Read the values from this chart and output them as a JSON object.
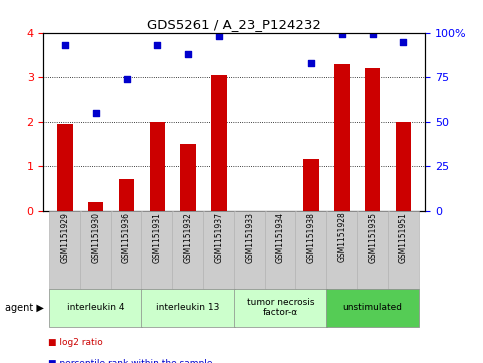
{
  "title": "GDS5261 / A_23_P124232",
  "samples": [
    "GSM1151929",
    "GSM1151930",
    "GSM1151936",
    "GSM1151931",
    "GSM1151932",
    "GSM1151937",
    "GSM1151933",
    "GSM1151934",
    "GSM1151938",
    "GSM1151928",
    "GSM1151935",
    "GSM1151951"
  ],
  "log2_ratio": [
    1.95,
    0.2,
    0.7,
    2.0,
    1.5,
    3.05,
    0.0,
    0.0,
    1.15,
    3.3,
    3.2,
    2.0
  ],
  "percentile": [
    93,
    55,
    74,
    93,
    88,
    98,
    0,
    0,
    83,
    99,
    99,
    95
  ],
  "groups": [
    {
      "label": "interleukin 4",
      "indices": [
        0,
        1,
        2
      ],
      "color": "#ccffcc",
      "text_lines": 1
    },
    {
      "label": "interleukin 13",
      "indices": [
        3,
        4,
        5
      ],
      "color": "#ccffcc",
      "text_lines": 1
    },
    {
      "label": "tumor necrosis\nfactor-α",
      "indices": [
        6,
        7,
        8
      ],
      "color": "#ccffcc",
      "text_lines": 2
    },
    {
      "label": "unstimulated",
      "indices": [
        9,
        10,
        11
      ],
      "color": "#55cc55",
      "text_lines": 1
    }
  ],
  "bar_color": "#cc0000",
  "dot_color": "#0000cc",
  "left_ylim": [
    0,
    4
  ],
  "right_ylim": [
    0,
    100
  ],
  "left_yticks": [
    0,
    1,
    2,
    3,
    4
  ],
  "right_yticks": [
    0,
    25,
    50,
    75,
    100
  ],
  "right_yticklabels": [
    "0",
    "25",
    "50",
    "75",
    "100%"
  ],
  "bar_width": 0.5,
  "gray_bg": "#cccccc",
  "white_bg": "#ffffff"
}
